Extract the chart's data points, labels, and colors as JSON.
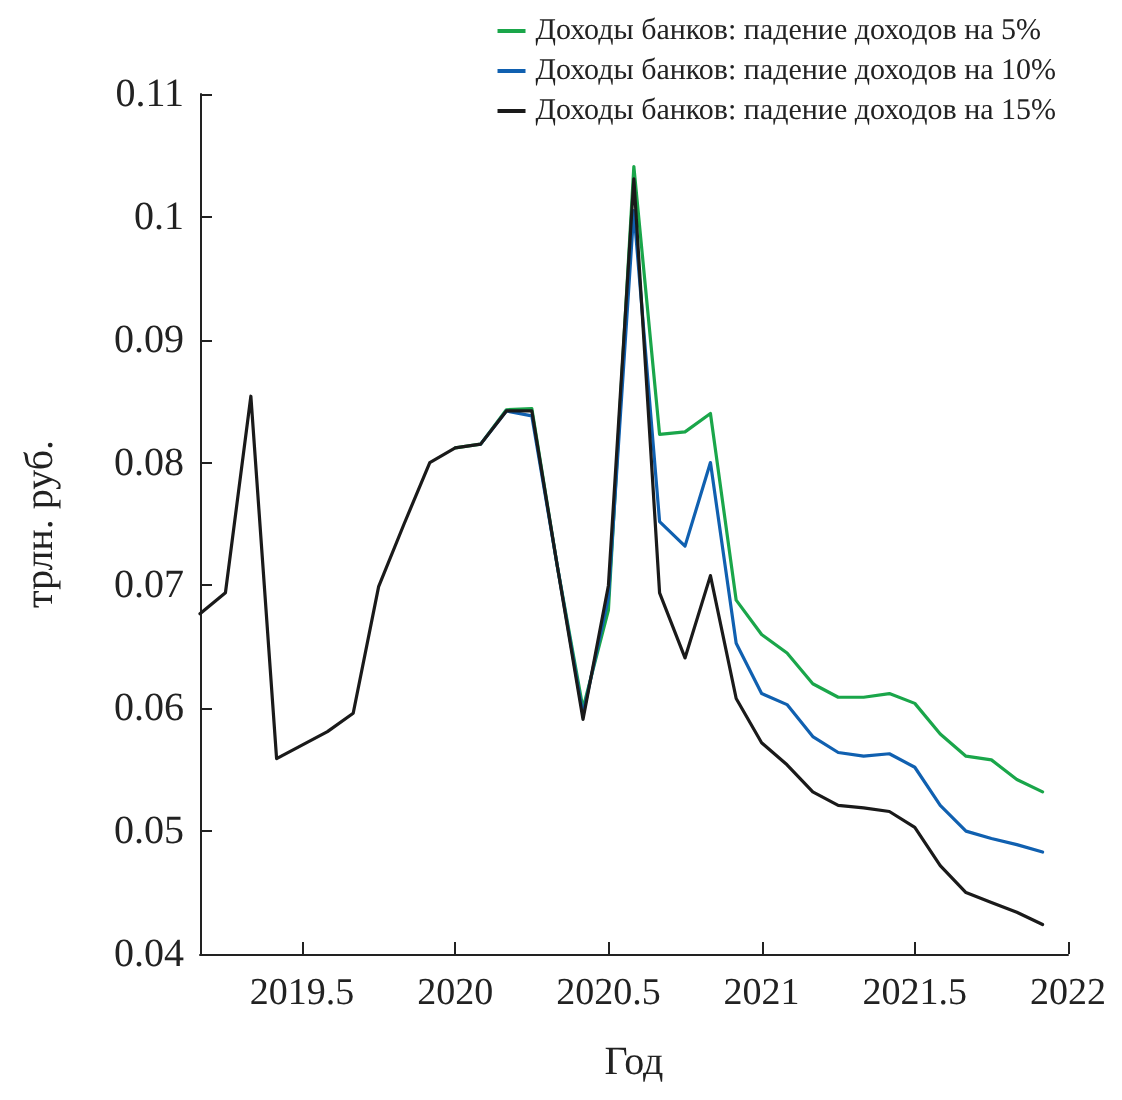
{
  "chart_data": {
    "type": "line",
    "xlabel": "Год",
    "ylabel": "трлн. руб.",
    "x": [
      2019.167,
      2019.25,
      2019.333,
      2019.417,
      2019.5,
      2019.583,
      2019.667,
      2019.75,
      2019.833,
      2019.917,
      2020.0,
      2020.083,
      2020.167,
      2020.25,
      2020.333,
      2020.417,
      2020.5,
      2020.583,
      2020.667,
      2020.75,
      2020.833,
      2020.917,
      2021.0,
      2021.083,
      2021.167,
      2021.25,
      2021.333,
      2021.417,
      2021.5,
      2021.583,
      2021.667,
      2021.75,
      2021.833,
      2021.917
    ],
    "series": [
      {
        "name": "Доходы банков: падение доходов на 5%",
        "color": "#1aa64a",
        "values": [
          null,
          null,
          null,
          null,
          null,
          null,
          null,
          null,
          null,
          null,
          0.0812,
          0.0815,
          0.0843,
          0.0844,
          0.0716,
          0.06,
          0.068,
          0.1041,
          0.0823,
          0.0825,
          0.084,
          0.0688,
          0.066,
          0.0645,
          0.062,
          0.0609,
          0.0609,
          0.0612,
          0.0604,
          0.0579,
          0.0561,
          0.0558,
          0.0542,
          0.0532
        ]
      },
      {
        "name": "Доходы банков: падение доходов на 10%",
        "color": "#1060b0",
        "values": [
          null,
          null,
          null,
          null,
          null,
          null,
          null,
          null,
          null,
          null,
          null,
          0.0815,
          0.0842,
          0.0838,
          0.0716,
          0.0595,
          0.069,
          0.1005,
          0.0752,
          0.0732,
          0.08,
          0.0653,
          0.0612,
          0.0603,
          0.0577,
          0.0564,
          0.0561,
          0.0563,
          0.0552,
          0.0521,
          0.05,
          0.0494,
          0.0489,
          0.0483
        ]
      },
      {
        "name": "Доходы банков: падение доходов на 15%",
        "color": "#1a1a1a",
        "values": [
          0.0677,
          0.0694,
          0.0854,
          0.0559,
          0.057,
          0.0581,
          0.0596,
          0.0699,
          0.075,
          0.08,
          0.0812,
          0.0815,
          0.0842,
          0.0842,
          0.0716,
          0.0591,
          0.07,
          0.1031,
          0.0694,
          0.0641,
          0.0708,
          0.0608,
          0.0572,
          0.0554,
          0.0532,
          0.0521,
          0.0519,
          0.0516,
          0.0503,
          0.0472,
          0.045,
          0.0442,
          0.0434,
          0.0424
        ]
      }
    ],
    "xlim": [
      2019.167,
      2022
    ],
    "xticks": [
      2019.5,
      2020,
      2020.5,
      2021,
      2021.5,
      2022
    ],
    "ylim": [
      0.04,
      0.11
    ],
    "yticks": [
      0.04,
      0.05,
      0.06,
      0.07,
      0.08,
      0.09,
      0.1,
      0.11
    ],
    "grid": false,
    "legend": "top right",
    "marker": "none",
    "line_style": "solid"
  }
}
